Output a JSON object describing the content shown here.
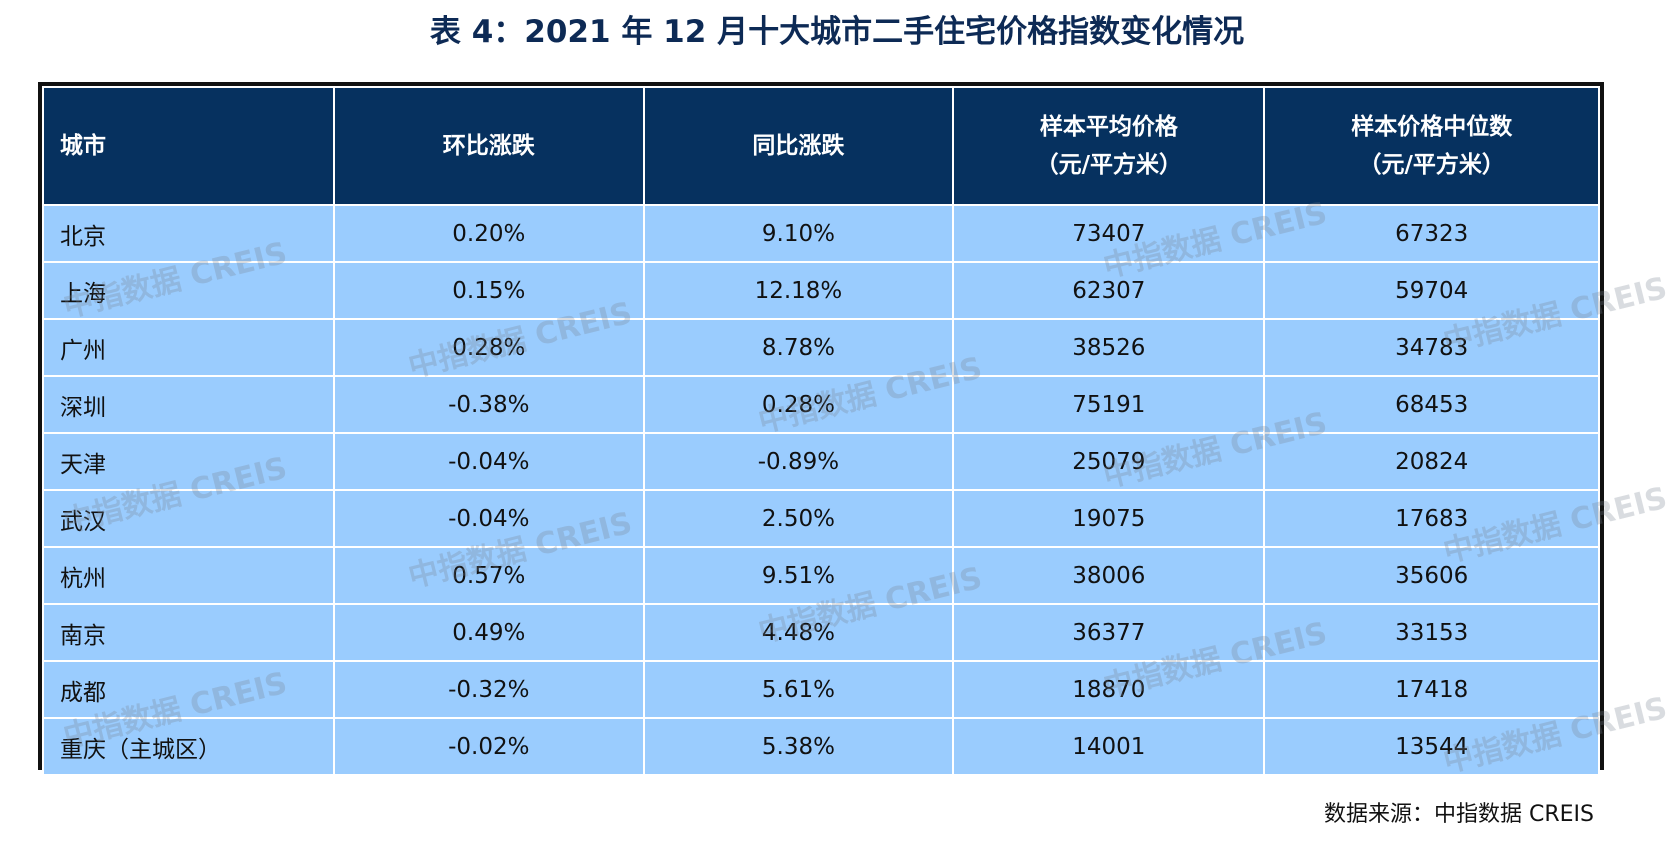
{
  "title": "表 4：2021 年 12 月十大城市二手住宅价格指数变化情况",
  "header": [
    "城市",
    "环比涨跌",
    "同比涨跌",
    "样本平均价格\n（元/平方米）",
    "样本价格中位数\n（元/平方米）"
  ],
  "rows": [
    [
      "北京",
      "0.20%",
      "9.10%",
      "73407",
      "67323"
    ],
    [
      "上海",
      "0.15%",
      "12.18%",
      "62307",
      "59704"
    ],
    [
      "广州",
      "0.28%",
      "8.78%",
      "38526",
      "34783"
    ],
    [
      "深圳",
      "-0.38%",
      "0.28%",
      "75191",
      "68453"
    ],
    [
      "天津",
      "-0.04%",
      "-0.89%",
      "25079",
      "20824"
    ],
    [
      "武汉",
      "-0.04%",
      "2.50%",
      "19075",
      "17683"
    ],
    [
      "杭州",
      "0.57%",
      "9.51%",
      "38006",
      "35606"
    ],
    [
      "南京",
      "0.49%",
      "4.48%",
      "36377",
      "33153"
    ],
    [
      "成都",
      "-0.32%",
      "5.61%",
      "18870",
      "17418"
    ],
    [
      "重庆（主城区）",
      "-0.02%",
      "5.38%",
      "14001",
      "13544"
    ]
  ],
  "watermark": "中指数据 CREIS",
  "source": "数据来源：中指数据  CREIS",
  "colors": {
    "header_bg": "#06315f",
    "row_bg": "#9accfe",
    "title": "#0d2a55"
  }
}
